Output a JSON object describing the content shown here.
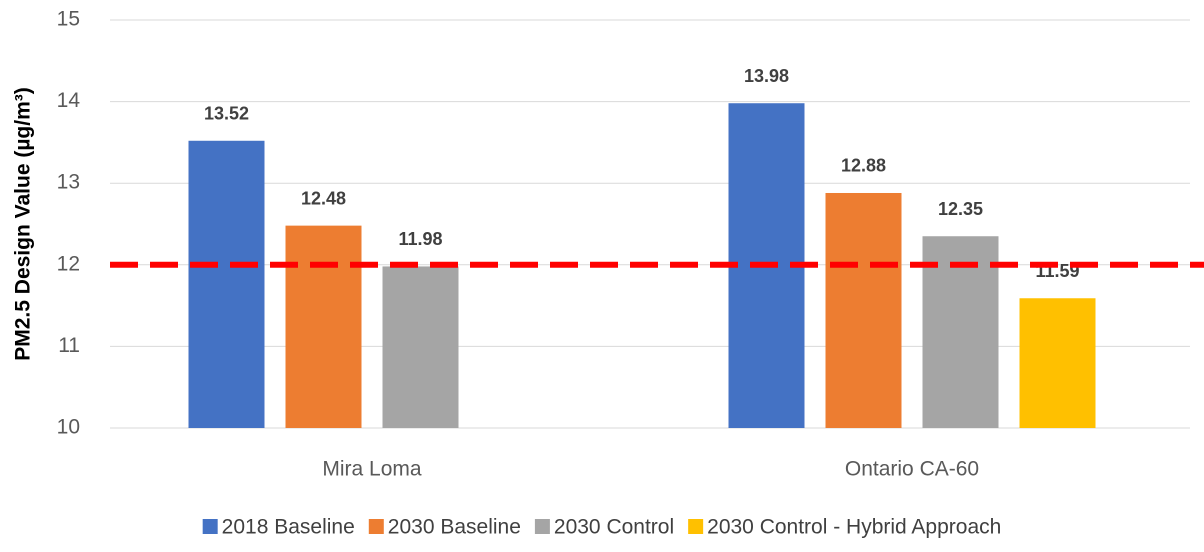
{
  "chart_data": {
    "type": "bar",
    "y_label": "PM2.5 Design Value (µg/m³)",
    "categories": [
      "Mira Loma",
      "Ontario CA-60"
    ],
    "series": [
      {
        "name": "2018 Baseline",
        "color": "#4472c4",
        "values": [
          13.52,
          13.98
        ]
      },
      {
        "name": "2030 Baseline",
        "color": "#ed7d31",
        "values": [
          12.48,
          12.88
        ]
      },
      {
        "name": "2030 Control",
        "color": "#a5a5a5",
        "values": [
          11.98,
          12.35
        ]
      },
      {
        "name": "2030 Control - Hybrid Approach",
        "color": "#ffc000",
        "values": [
          null,
          11.59
        ]
      }
    ],
    "ylim": [
      10,
      15
    ],
    "yticks": [
      10,
      11,
      12,
      13,
      14,
      15
    ],
    "grid": true,
    "reference_line": {
      "value": 12,
      "color": "#ff0000"
    },
    "legend": "bottom"
  }
}
